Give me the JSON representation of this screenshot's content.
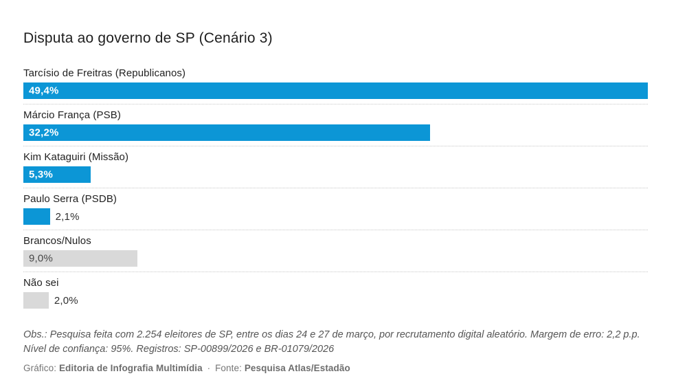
{
  "chart_data": {
    "type": "bar",
    "orientation": "horizontal",
    "title": "Disputa ao governo de SP (Cenário 3)",
    "categories": [
      "Tarcísio de Freitras (Republicanos)",
      "Márcio França (PSB)",
      "Kim Kataguiri (Missão)",
      "Paulo Serra (PSDB)",
      "Brancos/Nulos",
      "Não sei"
    ],
    "values": [
      49.4,
      32.2,
      5.3,
      2.1,
      9.0,
      2.0
    ],
    "value_labels": [
      "49,4%",
      "32,2%",
      "5,3%",
      "2,1%",
      "9,0%",
      "2,0%"
    ],
    "xlim": [
      0,
      49.4
    ],
    "grid": false,
    "legend": false,
    "rows": [
      {
        "label": "Tarcísio de Freitras (Republicanos)",
        "value": 49.4,
        "value_label": "49,4%",
        "color": "blue",
        "value_position": "inside"
      },
      {
        "label": "Márcio França (PSB)",
        "value": 32.2,
        "value_label": "32,2%",
        "color": "blue",
        "value_position": "inside"
      },
      {
        "label": "Kim Kataguiri (Missão)",
        "value": 5.3,
        "value_label": "5,3%",
        "color": "blue",
        "value_position": "inside"
      },
      {
        "label": "Paulo Serra (PSDB)",
        "value": 2.1,
        "value_label": "2,1%",
        "color": "blue",
        "value_position": "outside"
      },
      {
        "label": "Brancos/Nulos",
        "value": 9.0,
        "value_label": "9,0%",
        "color": "gray",
        "value_position": "inside"
      },
      {
        "label": "Não sei",
        "value": 2.0,
        "value_label": "2,0%",
        "color": "gray",
        "value_position": "outside"
      }
    ]
  },
  "footer": {
    "note_line1": "Obs.: Pesquisa feita com 2.254 eleitores de SP, entre os dias 24 e 27 de março, por recrutamento digital aleatório. Margem de erro: 2,2 p.p.",
    "note_line2": "Nível de confiança: 95%. Registros: SP-00899/2026 e BR-01079/2026",
    "credits": {
      "grafico_label": "Gráfico:",
      "grafico_value": "Editoria de Infografia Multimídia",
      "separator": "·",
      "fonte_label": "Fonte:",
      "fonte_value": "Pesquisa Atlas/Estadão"
    }
  },
  "colors": {
    "bar_blue": "#0c96d6",
    "bar_gray": "#d9d9d9",
    "value_on_blue": "#ffffff",
    "value_on_gray": "#474747",
    "value_outside": "#303030",
    "label_text": "#212121",
    "title_text": "#1e1e1e",
    "note_text": "#555555",
    "credits_text": "#757575",
    "separator_dots": "#c6c6c6"
  }
}
